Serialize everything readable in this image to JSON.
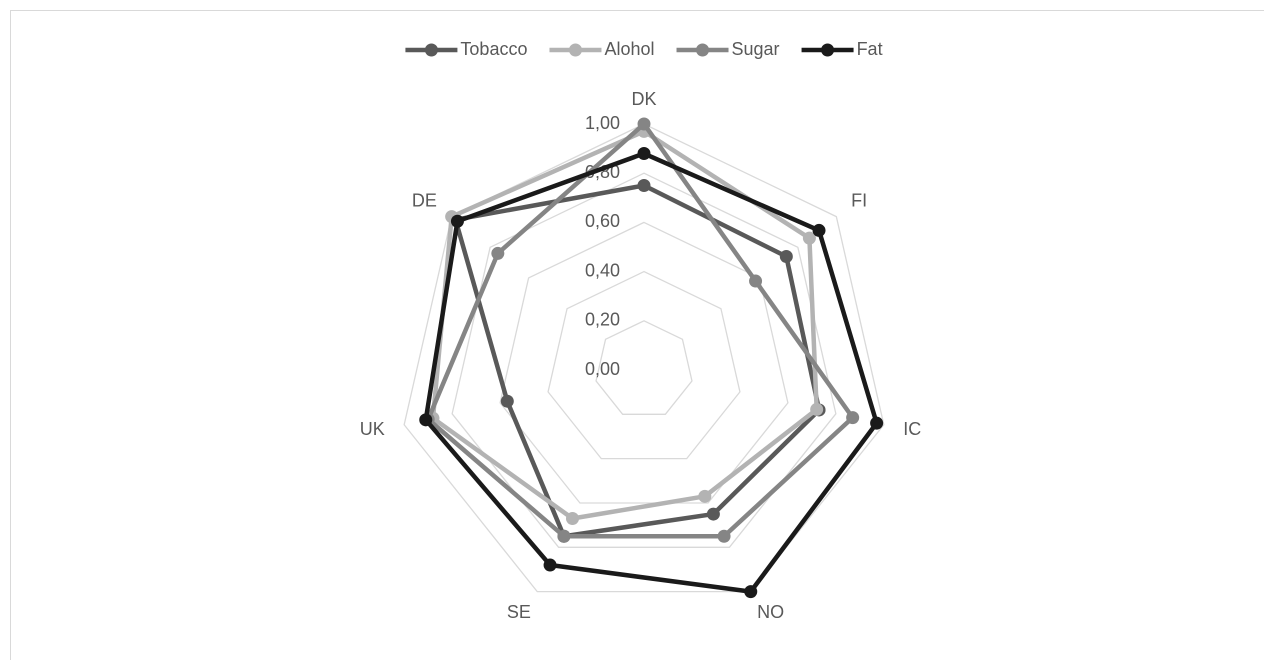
{
  "chart_data": {
    "type": "radar",
    "categories": [
      "DK",
      "FI",
      "IC",
      "NO",
      "SE",
      "UK",
      "DE"
    ],
    "series": [
      {
        "name": "Tobacco",
        "color": "#595959",
        "values": [
          0.75,
          0.74,
          0.73,
          0.65,
          0.75,
          0.57,
          0.98
        ]
      },
      {
        "name": "Alohol",
        "color": "#b3b3b3",
        "values": [
          0.97,
          0.86,
          0.72,
          0.57,
          0.67,
          0.88,
          1.0
        ]
      },
      {
        "name": "Sugar",
        "color": "#858585",
        "values": [
          1.0,
          0.58,
          0.87,
          0.75,
          0.75,
          0.9,
          0.76
        ]
      },
      {
        "name": "Fat",
        "color": "#1a1a1a",
        "values": [
          0.88,
          0.91,
          0.97,
          1.0,
          0.88,
          0.91,
          0.97
        ]
      }
    ],
    "ylim": [
      0,
      1
    ],
    "yticks": [
      {
        "value": 0,
        "label": "0,00"
      },
      {
        "value": 0.2,
        "label": "0,20"
      },
      {
        "value": 0.4,
        "label": "0,40"
      },
      {
        "value": 0.6,
        "label": "0,60"
      },
      {
        "value": 0.8,
        "label": "0,80"
      },
      {
        "value": 1,
        "label": "1,00"
      }
    ],
    "grid": true,
    "legend": "top"
  }
}
